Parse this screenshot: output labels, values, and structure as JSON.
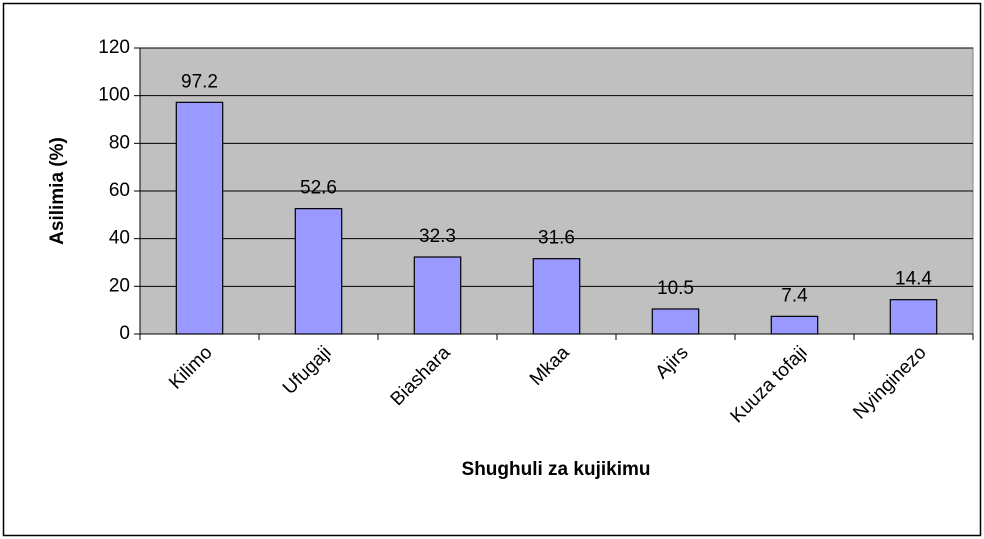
{
  "chart_data": {
    "type": "bar",
    "x_label": "Shughuli za kujikimu",
    "y_label": "Asilimia (%)",
    "categories": [
      "Kilimo",
      "Ufugaji",
      "Biashara",
      "Mkaa",
      "Ajirs",
      "Kuuza tofaji",
      "Nyinginezo"
    ],
    "values": [
      97.2,
      52.6,
      32.3,
      31.6,
      10.5,
      7.4,
      14.4
    ],
    "color": "#9999ff",
    "ylim": [
      0,
      120
    ],
    "yticks": [
      0,
      20,
      40,
      60,
      80,
      100,
      120
    ],
    "grid": true
  }
}
